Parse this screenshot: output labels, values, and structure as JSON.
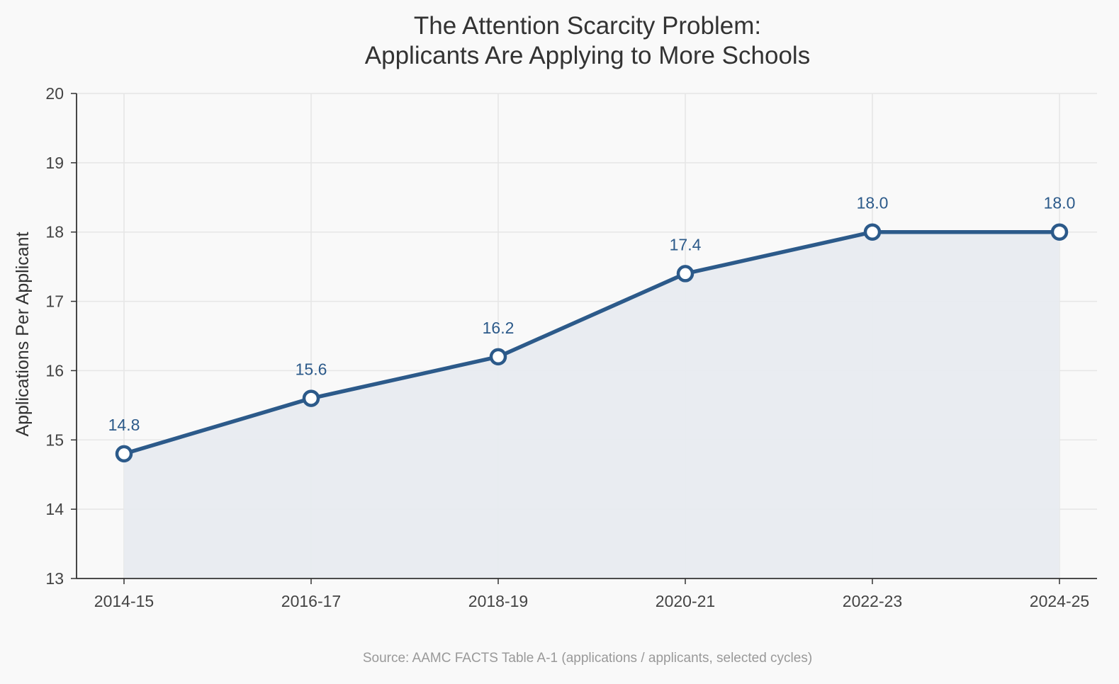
{
  "colors": {
    "background": "#f9f9f9",
    "line": "#2c5a8a",
    "area_fill": "#e8ebf0",
    "grid": "#e6e6e6",
    "axis": "#333333",
    "tick_text": "#444444",
    "title_text": "#333333",
    "source_text": "#999999",
    "marker_fill": "#ffffff"
  },
  "chart_data": {
    "type": "area",
    "title_lines": [
      "The Attention Scarcity Problem:",
      "Applicants Are Applying to More Schools"
    ],
    "xlabel": "",
    "ylabel": "Applications Per Applicant",
    "categories": [
      "2014-15",
      "2016-17",
      "2018-19",
      "2020-21",
      "2022-23",
      "2024-25"
    ],
    "series": [
      {
        "name": "Applications Per Applicant",
        "values": [
          14.8,
          15.6,
          16.2,
          17.4,
          18.0,
          18.0
        ],
        "labels": [
          "14.8",
          "15.6",
          "16.2",
          "17.4",
          "18.0",
          "18.0"
        ]
      }
    ],
    "ylim": [
      13,
      20
    ],
    "yticks": [
      13,
      14,
      15,
      16,
      17,
      18,
      19,
      20
    ],
    "grid": true,
    "source": "Source: AAMC FACTS Table A-1 (applications / applicants, selected cycles)"
  }
}
